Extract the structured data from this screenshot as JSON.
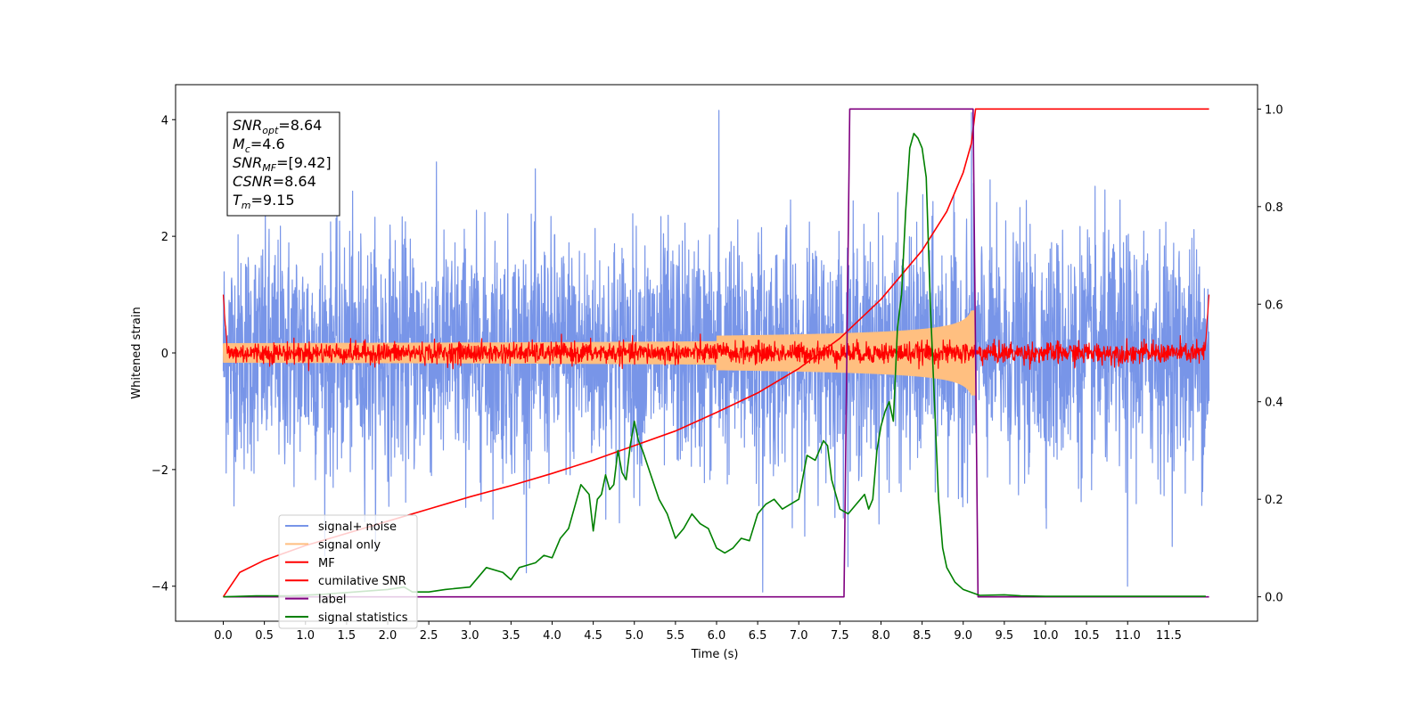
{
  "chart_data": {
    "type": "line",
    "xlabel": "Time (s)",
    "ylabel": "Whitened strain",
    "xlim": [
      -0.58,
      12.58
    ],
    "ylim": [
      -4.6,
      4.6
    ],
    "y2lim": [
      -0.05,
      1.05
    ],
    "x_ticks": [
      0.0,
      0.5,
      1.0,
      1.5,
      2.0,
      2.5,
      3.0,
      3.5,
      4.0,
      4.5,
      5.0,
      5.5,
      6.0,
      6.5,
      7.0,
      7.5,
      8.0,
      8.5,
      9.0,
      9.5,
      10.0,
      10.5,
      11.0,
      11.5
    ],
    "x_tick_labels": [
      "0.0",
      "0.5",
      "1.0",
      "1.5",
      "2.0",
      "2.5",
      "3.0",
      "3.5",
      "4.0",
      "4.5",
      "5.0",
      "5.5",
      "6.0",
      "6.5",
      "7.0",
      "7.5",
      "8.0",
      "8.5",
      "9.0",
      "9.5",
      "10.0",
      "10.5",
      "11.0",
      "11.5"
    ],
    "y_ticks": [
      -4,
      -2,
      0,
      2,
      4
    ],
    "y_tick_labels": [
      "−4",
      "−2",
      "0",
      "2",
      "4"
    ],
    "y2_ticks": [
      0.0,
      0.2,
      0.4,
      0.6,
      0.8,
      1.0
    ],
    "y2_tick_labels": [
      "0.0",
      "0.2",
      "0.4",
      "0.6",
      "0.8",
      "1.0"
    ],
    "grid": false,
    "legend_position": "lower-left",
    "annotation": {
      "lines": [
        {
          "main": "SNR",
          "sub": "opt",
          "rest": "=8.64"
        },
        {
          "main": "M",
          "sub": "c",
          "rest": "=4.6"
        },
        {
          "main": "SNR",
          "sub": "MF",
          "rest": "=[9.42]"
        },
        {
          "main": "CSNR",
          "sub": "",
          "rest": "=8.64"
        },
        {
          "main": "T",
          "sub": "m",
          "rest": "=9.15"
        }
      ]
    },
    "series": [
      {
        "name": "signal+ noise",
        "color": "#7895e8",
        "axis": "left",
        "kind": "noise",
        "x_range": [
          0,
          11.99
        ],
        "sigma": 1.0,
        "peak_max": 4.16,
        "peak_min": -4.1
      },
      {
        "name": "signal only",
        "color": "#ffbf80",
        "axis": "left",
        "kind": "chirp",
        "x_range": [
          0,
          9.15
        ],
        "amp_end": 0.72,
        "amp_base": 0.05
      },
      {
        "name": "MF",
        "color": "#ff0000",
        "axis": "left",
        "kind": "mf",
        "x_range": [
          0,
          11.99
        ],
        "sigma": 0.09,
        "peak_max": 0.38,
        "edge_start": 1.0,
        "edge_end": 1.0
      },
      {
        "name": "cumilative SNR",
        "color": "#ff0000",
        "axis": "right",
        "x": [
          0,
          0.2,
          0.5,
          1.0,
          1.5,
          2.0,
          2.5,
          3.0,
          3.5,
          4.0,
          4.5,
          5.0,
          5.5,
          6.0,
          6.5,
          7.0,
          7.5,
          8.0,
          8.5,
          8.8,
          9.0,
          9.1,
          9.15,
          11.99
        ],
        "y": [
          0.0,
          0.05,
          0.075,
          0.105,
          0.13,
          0.155,
          0.18,
          0.205,
          0.228,
          0.253,
          0.28,
          0.31,
          0.34,
          0.378,
          0.418,
          0.468,
          0.53,
          0.61,
          0.71,
          0.79,
          0.87,
          0.93,
          1.0,
          1.0
        ]
      },
      {
        "name": "label",
        "color": "#800080",
        "axis": "right",
        "x": [
          0,
          7.55,
          7.62,
          9.12,
          9.18,
          11.99
        ],
        "y": [
          0,
          0,
          1,
          1,
          0,
          0
        ]
      },
      {
        "name": "signal statistics",
        "color": "#008000",
        "axis": "right",
        "x": [
          0,
          0.4,
          0.8,
          1.2,
          1.6,
          2.0,
          2.2,
          2.3,
          2.5,
          2.7,
          3.0,
          3.2,
          3.4,
          3.5,
          3.6,
          3.8,
          3.9,
          4.0,
          4.1,
          4.2,
          4.3,
          4.35,
          4.45,
          4.5,
          4.55,
          4.6,
          4.65,
          4.7,
          4.75,
          4.8,
          4.85,
          4.9,
          4.95,
          5.0,
          5.05,
          5.1,
          5.2,
          5.3,
          5.4,
          5.5,
          5.6,
          5.7,
          5.8,
          5.9,
          6.0,
          6.1,
          6.2,
          6.3,
          6.4,
          6.5,
          6.6,
          6.7,
          6.8,
          6.9,
          7.0,
          7.1,
          7.2,
          7.3,
          7.35,
          7.4,
          7.5,
          7.6,
          7.7,
          7.75,
          7.8,
          7.85,
          7.9,
          7.95,
          8.0,
          8.05,
          8.1,
          8.15,
          8.2,
          8.25,
          8.3,
          8.35,
          8.4,
          8.45,
          8.5,
          8.55,
          8.6,
          8.65,
          8.7,
          8.75,
          8.8,
          8.9,
          9.0,
          9.2,
          9.5,
          9.7,
          10.0,
          10.5,
          11.0,
          11.5,
          11.95
        ],
        "y": [
          0.0,
          0.002,
          0.002,
          0.005,
          0.01,
          0.015,
          0.02,
          0.01,
          0.01,
          0.015,
          0.02,
          0.06,
          0.05,
          0.035,
          0.06,
          0.07,
          0.085,
          0.08,
          0.12,
          0.14,
          0.2,
          0.23,
          0.21,
          0.135,
          0.2,
          0.21,
          0.25,
          0.22,
          0.23,
          0.3,
          0.255,
          0.24,
          0.31,
          0.36,
          0.32,
          0.3,
          0.25,
          0.2,
          0.17,
          0.12,
          0.14,
          0.17,
          0.15,
          0.14,
          0.1,
          0.09,
          0.1,
          0.12,
          0.115,
          0.17,
          0.19,
          0.2,
          0.18,
          0.19,
          0.2,
          0.29,
          0.28,
          0.32,
          0.31,
          0.24,
          0.18,
          0.17,
          0.19,
          0.2,
          0.21,
          0.18,
          0.2,
          0.3,
          0.35,
          0.38,
          0.4,
          0.36,
          0.55,
          0.62,
          0.79,
          0.92,
          0.95,
          0.94,
          0.92,
          0.86,
          0.6,
          0.4,
          0.2,
          0.1,
          0.06,
          0.03,
          0.015,
          0.003,
          0.004,
          0.002,
          0.001,
          0.001,
          0.001,
          0.001,
          0.001
        ]
      }
    ]
  }
}
